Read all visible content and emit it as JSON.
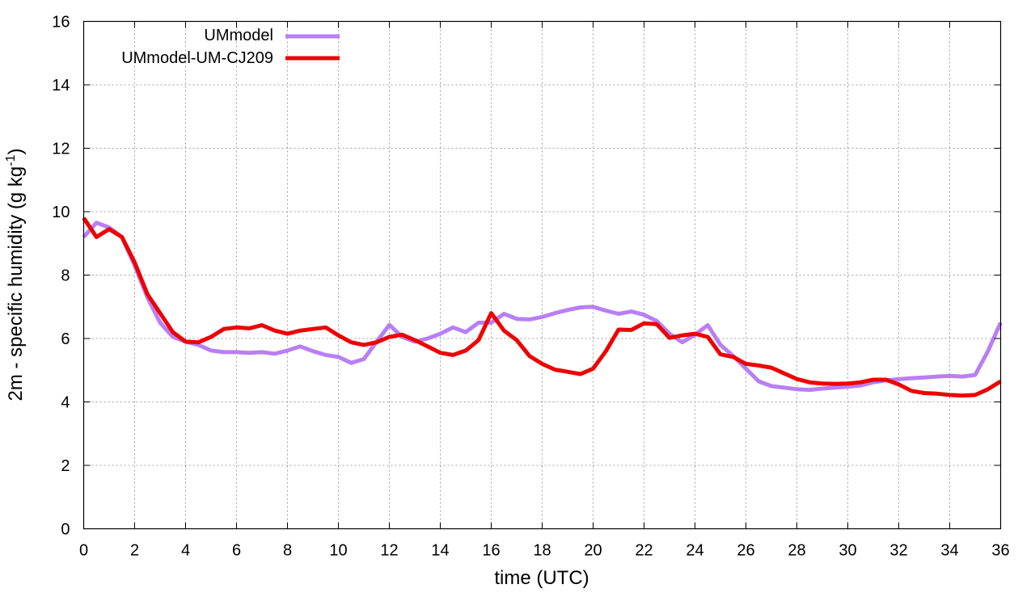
{
  "chart_data": {
    "type": "line",
    "xlabel": "time (UTC)",
    "ylabel": "2m - specific humidity (g kg",
    "ylabel_sup": "-1",
    "ylabel_end": ")",
    "xlim": [
      0,
      36
    ],
    "ylim": [
      0,
      16
    ],
    "xticks": [
      0,
      2,
      4,
      6,
      8,
      10,
      12,
      14,
      16,
      18,
      20,
      22,
      24,
      26,
      28,
      30,
      32,
      34,
      36
    ],
    "yticks": [
      0,
      2,
      4,
      6,
      8,
      10,
      12,
      14,
      16
    ],
    "grid": true,
    "legend_position": "top-left",
    "series": [
      {
        "name": "UMmodel",
        "color": "#b87ff5",
        "x": [
          0,
          0.5,
          1,
          1.5,
          2,
          2.5,
          3,
          3.5,
          4,
          4.5,
          5,
          5.5,
          6,
          6.5,
          7,
          7.5,
          8,
          8.5,
          9,
          9.5,
          10,
          10.5,
          11,
          11.5,
          12,
          12.5,
          13,
          13.5,
          14,
          14.5,
          15,
          15.5,
          16,
          16.5,
          17,
          17.5,
          18,
          18.5,
          19,
          19.5,
          20,
          20.5,
          21,
          21.5,
          22,
          22.5,
          23,
          23.5,
          24,
          24.5,
          25,
          25.5,
          26,
          26.5,
          27,
          27.5,
          28,
          28.5,
          29,
          29.5,
          30,
          30.5,
          31,
          31.5,
          32,
          32.5,
          33,
          33.5,
          34,
          34.5,
          35,
          35.5,
          36
        ],
        "values": [
          9.2,
          9.65,
          9.5,
          9.2,
          8.3,
          7.3,
          6.5,
          6.05,
          5.9,
          5.8,
          5.62,
          5.57,
          5.57,
          5.55,
          5.57,
          5.52,
          5.62,
          5.75,
          5.6,
          5.48,
          5.42,
          5.23,
          5.35,
          5.9,
          6.43,
          6.05,
          5.9,
          6.0,
          6.15,
          6.35,
          6.2,
          6.5,
          6.5,
          6.78,
          6.62,
          6.6,
          6.68,
          6.8,
          6.9,
          6.98,
          7.0,
          6.88,
          6.78,
          6.85,
          6.75,
          6.55,
          6.15,
          5.88,
          6.12,
          6.42,
          5.8,
          5.45,
          5.05,
          4.65,
          4.5,
          4.45,
          4.4,
          4.38,
          4.42,
          4.45,
          4.48,
          4.52,
          4.62,
          4.68,
          4.72,
          4.75,
          4.77,
          4.8,
          4.82,
          4.8,
          4.85,
          5.6,
          6.5
        ]
      },
      {
        "name": "UMmodel-UM-CJ209",
        "color": "#ee0000",
        "x": [
          0,
          0.5,
          1,
          1.5,
          2,
          2.5,
          3,
          3.5,
          4,
          4.5,
          5,
          5.5,
          6,
          6.5,
          7,
          7.5,
          8,
          8.5,
          9,
          9.5,
          10,
          10.5,
          11,
          11.5,
          12,
          12.5,
          13,
          13.5,
          14,
          14.5,
          15,
          15.5,
          16,
          16.5,
          17,
          17.5,
          18,
          18.5,
          19,
          19.5,
          20,
          20.5,
          21,
          21.5,
          22,
          22.5,
          23,
          23.5,
          24,
          24.5,
          25,
          25.5,
          26,
          26.5,
          27,
          27.5,
          28,
          28.5,
          29,
          29.5,
          30,
          30.5,
          31,
          31.5,
          32,
          32.5,
          33,
          33.5,
          34,
          34.5,
          35,
          35.5,
          36
        ],
        "values": [
          9.8,
          9.2,
          9.45,
          9.2,
          8.4,
          7.4,
          6.8,
          6.2,
          5.9,
          5.88,
          6.05,
          6.3,
          6.35,
          6.32,
          6.42,
          6.25,
          6.15,
          6.25,
          6.3,
          6.35,
          6.1,
          5.88,
          5.8,
          5.88,
          6.05,
          6.12,
          5.95,
          5.75,
          5.55,
          5.48,
          5.62,
          5.95,
          6.8,
          6.25,
          5.95,
          5.45,
          5.2,
          5.02,
          4.95,
          4.88,
          5.05,
          5.6,
          6.28,
          6.27,
          6.48,
          6.45,
          6.02,
          6.1,
          6.15,
          6.05,
          5.5,
          5.42,
          5.2,
          5.15,
          5.08,
          4.9,
          4.72,
          4.62,
          4.58,
          4.57,
          4.58,
          4.62,
          4.7,
          4.7,
          4.55,
          4.35,
          4.28,
          4.26,
          4.22,
          4.2,
          4.22,
          4.4,
          4.65
        ]
      }
    ]
  }
}
